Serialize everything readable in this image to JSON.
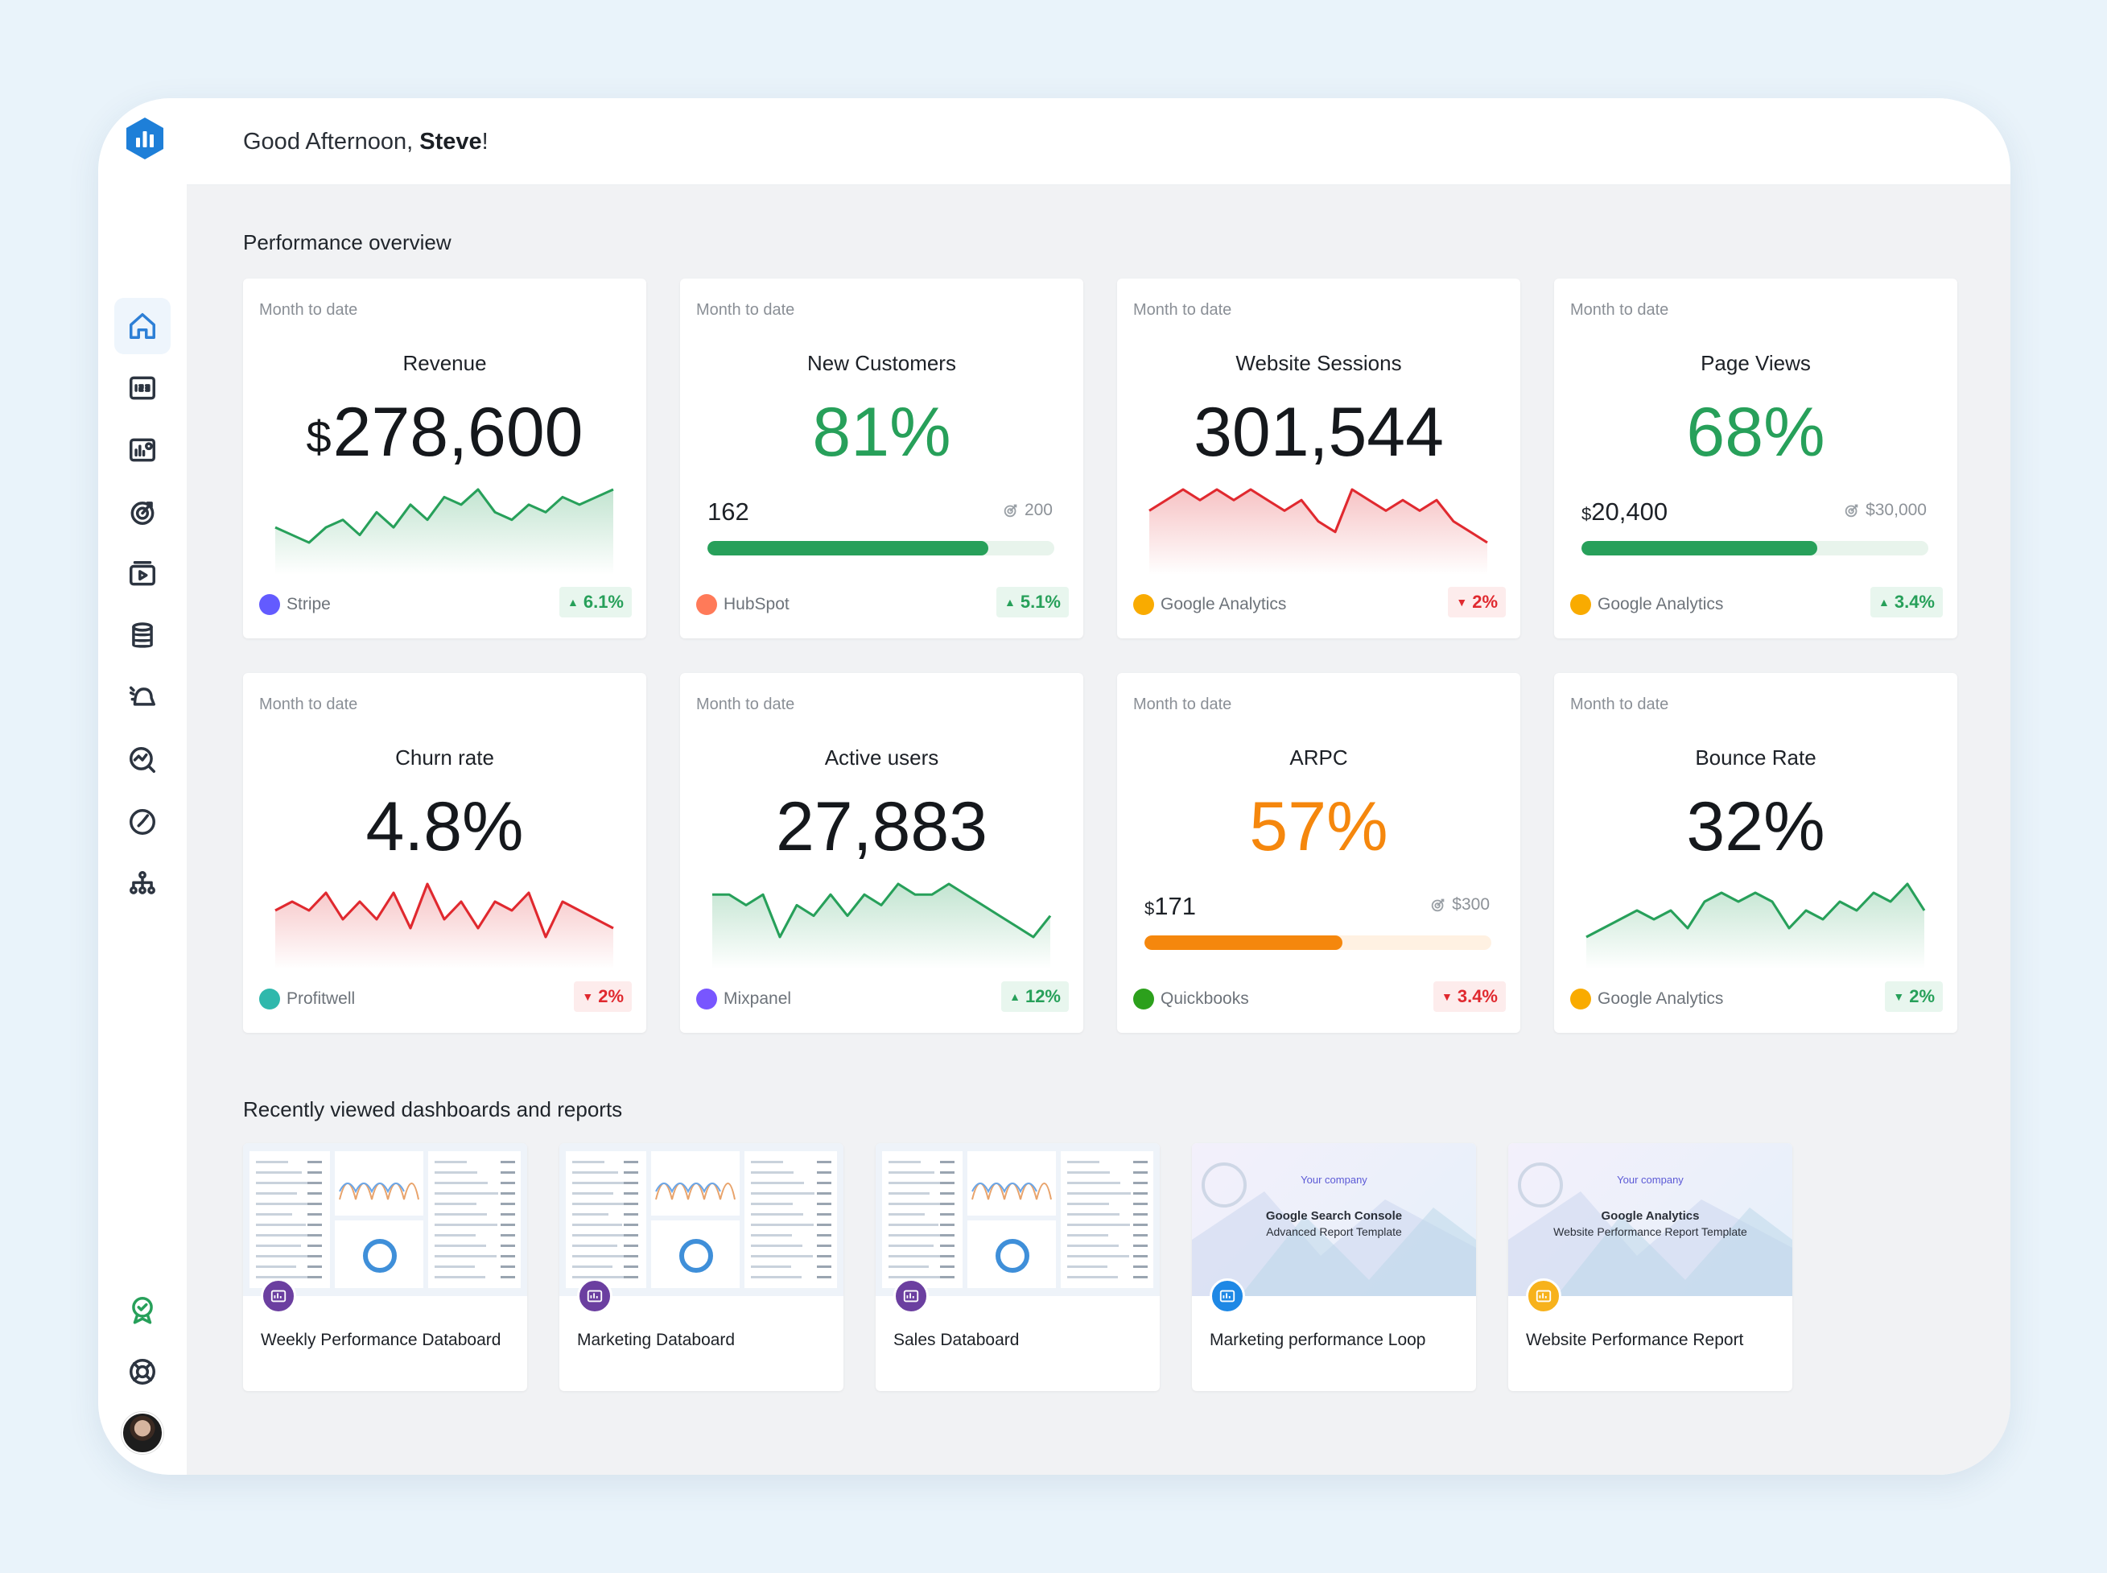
{
  "header": {
    "greeting_prefix": "Good Afternoon, ",
    "user_name": "Steve",
    "greeting_suffix": "!"
  },
  "sidebar": {
    "items": [
      {
        "icon": "home-icon",
        "active": true
      },
      {
        "icon": "numbers-icon"
      },
      {
        "icon": "dashboard-icon"
      },
      {
        "icon": "goals-icon"
      },
      {
        "icon": "reports-icon"
      },
      {
        "icon": "data-icon"
      },
      {
        "icon": "alerts-icon"
      },
      {
        "icon": "insights-icon"
      },
      {
        "icon": "performance-icon"
      },
      {
        "icon": "team-icon"
      }
    ],
    "bottom": [
      {
        "icon": "badge-icon"
      },
      {
        "icon": "help-icon"
      }
    ]
  },
  "performance": {
    "title": "Performance overview",
    "cards": [
      {
        "period": "Month to date",
        "title": "Revenue",
        "currency": "$",
        "value": "278,600",
        "color": "default",
        "type": "spark",
        "spark_color": "#27a05a",
        "spark": [
          4,
          3,
          2,
          4,
          5,
          3,
          6,
          4,
          7,
          5,
          8,
          7,
          9,
          6,
          5,
          7,
          6,
          8,
          7,
          8,
          9
        ],
        "source": "Stripe",
        "source_color": "#635bff",
        "source_glyph": "S",
        "change": "6.1%",
        "direction": "up"
      },
      {
        "period": "Month to date",
        "title": "New Customers",
        "value": "81%",
        "color": "green",
        "type": "progress",
        "progress_value": "162",
        "progress_target": "200",
        "progress_fraction": 0.81,
        "source": "HubSpot",
        "source_color": "#ff7a59",
        "source_glyph": "H",
        "change": "5.1%",
        "direction": "up"
      },
      {
        "period": "Month to date",
        "title": "Website Sessions",
        "value": "301,544",
        "color": "default",
        "type": "spark",
        "spark_color": "#e0292f",
        "spark": [
          6,
          7,
          8,
          7,
          8,
          7,
          8,
          7,
          6,
          7,
          5,
          4,
          8,
          7,
          6,
          7,
          6,
          7,
          5,
          4,
          3
        ],
        "source": "Google Analytics",
        "source_color": "#f9ab00",
        "source_glyph": "▮",
        "change": "2%",
        "direction": "down"
      },
      {
        "period": "Month to date",
        "title": "Page Views",
        "value": "68%",
        "color": "green",
        "type": "progress",
        "progress_currency": "$",
        "progress_value": "20,400",
        "progress_target": "$30,000",
        "progress_fraction": 0.68,
        "source": "Google Analytics",
        "source_color": "#f9ab00",
        "source_glyph": "▮",
        "change": "3.4%",
        "direction": "up"
      },
      {
        "period": "Month to date",
        "title": "Churn rate",
        "value": "4.8%",
        "color": "default",
        "type": "spark",
        "spark_color": "#e0292f",
        "spark": [
          6,
          7,
          6,
          8,
          5,
          7,
          5,
          8,
          4,
          9,
          5,
          7,
          4,
          7,
          6,
          8,
          3,
          7,
          6,
          5,
          4
        ],
        "source": "Profitwell",
        "source_color": "#2fb8ac",
        "source_glyph": "P",
        "change": "2%",
        "direction": "down"
      },
      {
        "period": "Month to date",
        "title": "Active users",
        "value": "27,883",
        "color": "default",
        "type": "spark",
        "spark_color": "#27a05a",
        "spark": [
          7,
          7,
          6,
          7,
          3,
          6,
          5,
          7,
          5,
          7,
          6,
          8,
          7,
          7,
          8,
          7,
          6,
          5,
          4,
          3,
          5
        ],
        "source": "Mixpanel",
        "source_color": "#7856ff",
        "source_glyph": "•••",
        "change": "12%",
        "direction": "up"
      },
      {
        "period": "Month to date",
        "title": "ARPC",
        "value": "57%",
        "color": "orange",
        "type": "progress",
        "progress_currency": "$",
        "progress_value": "171",
        "progress_target": "$300",
        "progress_fraction": 0.57,
        "progress_color": "orange",
        "source": "Quickbooks",
        "source_color": "#2ca01c",
        "source_glyph": "qb",
        "change": "3.4%",
        "direction": "down"
      },
      {
        "period": "Month to date",
        "title": "Bounce Rate",
        "value": "32%",
        "color": "default",
        "type": "spark",
        "spark_color": "#27a05a",
        "spark": [
          2,
          3,
          4,
          5,
          4,
          5,
          3,
          6,
          7,
          6,
          7,
          6,
          3,
          5,
          4,
          6,
          5,
          7,
          6,
          8,
          5
        ],
        "source": "Google Analytics",
        "source_color": "#f9ab00",
        "source_glyph": "▮",
        "change": "2%",
        "direction": "down_green"
      }
    ]
  },
  "recent": {
    "title": "Recently viewed dashboards and reports",
    "items": [
      {
        "name": "Weekly Performance Databoard",
        "icon_color": "#6b3fa0",
        "thumb": "dash"
      },
      {
        "name": "Marketing Databoard",
        "icon_color": "#6b3fa0",
        "thumb": "dash"
      },
      {
        "name": "Sales Databoard",
        "icon_color": "#6b3fa0",
        "thumb": "dash"
      },
      {
        "name": "Marketing performance Loop",
        "icon_color": "#1e88e5",
        "thumb": "report",
        "thumb_company": "Your company",
        "thumb_title": "Google Search Console",
        "thumb_subtitle": "Advanced Report Template"
      },
      {
        "name": "Website Performance Report",
        "icon_color": "#f7b21c",
        "thumb": "report",
        "thumb_company": "Your company",
        "thumb_title": "Google Analytics",
        "thumb_subtitle": "Website Performance Report Template"
      }
    ]
  }
}
